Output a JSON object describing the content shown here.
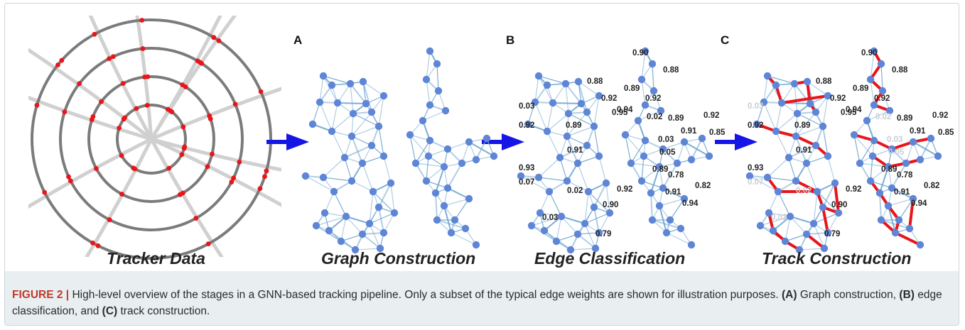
{
  "panels": {
    "a": "A",
    "b": "B",
    "c": "C"
  },
  "stages": {
    "tracker": "Tracker Data",
    "graph": "Graph Construction",
    "edge": "Edge Classification",
    "track": "Track Construction"
  },
  "caption": {
    "figure_label": "FIGURE 2 |",
    "text1": " High-level overview of the stages in a GNN-based tracking pipeline. Only a subset of the typical edge weights are shown for illustration purposes. ",
    "a": "(A)",
    "text2": " Graph construction, ",
    "b": "(B)",
    "text3": " edge classification, and ",
    "c": "(C)",
    "text4": " track construction."
  },
  "edge_weights": {
    "left": [
      "0.88",
      "0.92",
      "0.03",
      "0.95",
      "0.92",
      "0.89",
      "0.91",
      "0.93",
      "0.92",
      "0.07",
      "0.02",
      "0.90",
      "0.03",
      "0.79"
    ],
    "right": [
      "0.90",
      "0.88",
      "0.89",
      "0.92",
      "0.94",
      "0.02",
      "0.89",
      "0.92",
      "0.91",
      "0.85",
      "0.03",
      "0.05",
      "0.89",
      "0.78",
      "0.91",
      "0.82",
      "0.94"
    ]
  },
  "colors": {
    "hit": "#e8151b",
    "node": "#5f86d6",
    "edge": "#6fa6cf",
    "track": "#e8151b",
    "arrow": "#1515e6",
    "ring": "#7b7b7b"
  }
}
